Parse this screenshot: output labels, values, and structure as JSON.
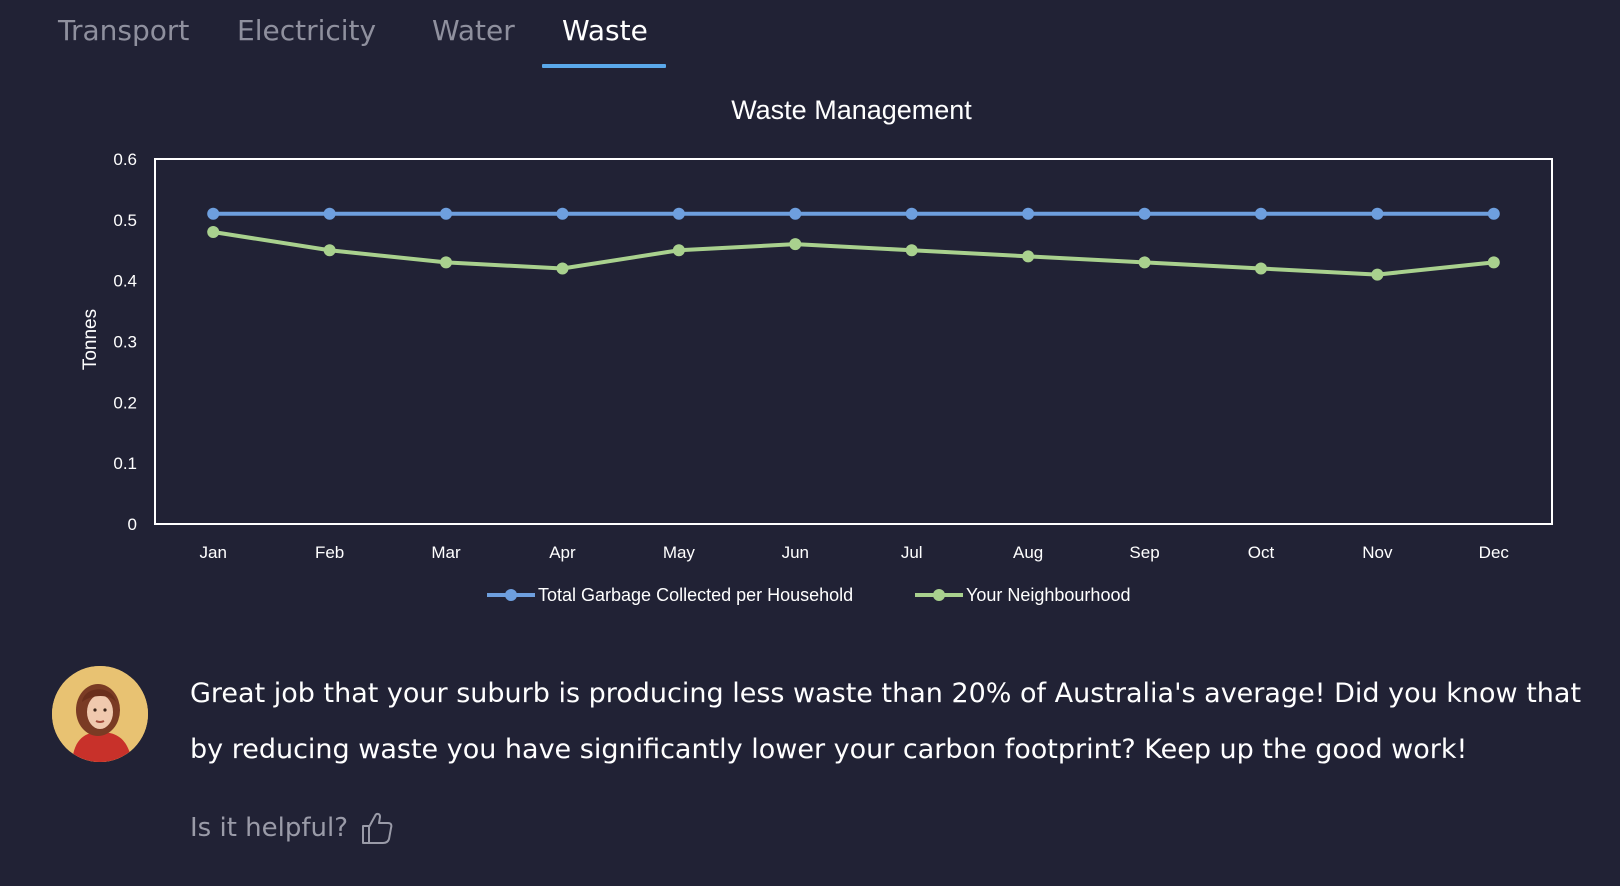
{
  "tabs": [
    {
      "label": "Transport",
      "active": false
    },
    {
      "label": "Electricity",
      "active": false
    },
    {
      "label": "Water",
      "active": false
    },
    {
      "label": "Waste",
      "active": true
    }
  ],
  "chart_data": {
    "type": "line",
    "title": "Waste Management",
    "ylabel": "Tonnes",
    "xlabel": "",
    "categories": [
      "Jan",
      "Feb",
      "Mar",
      "Apr",
      "May",
      "Jun",
      "Jul",
      "Aug",
      "Sep",
      "Oct",
      "Nov",
      "Dec"
    ],
    "ylim": [
      0,
      0.6
    ],
    "yticks": [
      "0",
      "0.1",
      "0.2",
      "0.3",
      "0.4",
      "0.5",
      "0.6"
    ],
    "grid": false,
    "legend_position": "bottom",
    "series": [
      {
        "name": "Total Garbage Collected per Household",
        "color": "#6e9fde",
        "values": [
          0.51,
          0.51,
          0.51,
          0.51,
          0.51,
          0.51,
          0.51,
          0.51,
          0.51,
          0.51,
          0.51,
          0.51
        ]
      },
      {
        "name": "Your Neighbourhood",
        "color": "#a9d18e",
        "values": [
          0.48,
          0.45,
          0.43,
          0.42,
          0.45,
          0.46,
          0.45,
          0.44,
          0.43,
          0.42,
          0.41,
          0.43
        ]
      }
    ]
  },
  "message": {
    "text": "Great job that your suburb is producing less waste than 20% of Australia's average! Did you know that by reducing waste you have significantly lower your carbon footprint? Keep up the good work!"
  },
  "feedback": {
    "question": "Is it helpful?",
    "icon": "thumbs-up-icon"
  },
  "colors": {
    "background": "#212235",
    "accent": "#5aa8ea"
  }
}
